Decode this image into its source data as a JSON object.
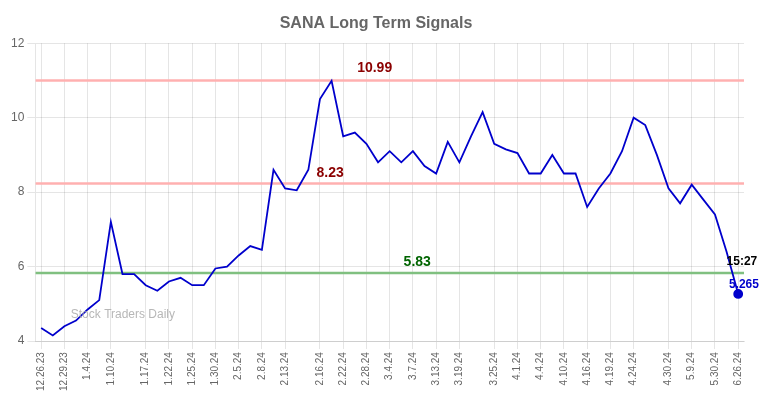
{
  "chart_data": {
    "type": "line",
    "title": "SANA Long Term Signals",
    "categories": [
      "12.26.23",
      null,
      "12.29.23",
      null,
      "1.4.24",
      null,
      "1.10.24",
      null,
      null,
      "1.17.24",
      null,
      "1.22.24",
      null,
      "1.25.24",
      null,
      "1.30.24",
      null,
      "2.5.24",
      null,
      "2.8.24",
      null,
      "2.13.24",
      null,
      null,
      "2.16.24",
      null,
      "2.22.24",
      null,
      "2.28.24",
      null,
      "3.4.24",
      null,
      "3.7.24",
      null,
      "3.13.24",
      null,
      "3.19.24",
      null,
      null,
      "3.25.24",
      null,
      "4.1.24",
      null,
      "4.4.24",
      null,
      "4.10.24",
      null,
      "4.16.24",
      null,
      "4.19.24",
      null,
      "4.24.24",
      null,
      null,
      "4.30.24",
      null,
      "5.9.24",
      null,
      "5.30.24",
      null,
      "6.26.24"
    ],
    "values": [
      4.35,
      4.15,
      4.4,
      4.55,
      4.85,
      5.1,
      7.2,
      5.8,
      5.8,
      5.5,
      5.35,
      5.6,
      5.7,
      5.5,
      5.5,
      5.95,
      6.0,
      6.3,
      6.55,
      6.45,
      8.6,
      8.1,
      8.05,
      8.6,
      10.5,
      10.99,
      9.5,
      9.6,
      9.3,
      8.8,
      9.1,
      8.8,
      9.1,
      8.7,
      8.5,
      9.35,
      8.8,
      9.5,
      10.15,
      9.3,
      9.15,
      9.05,
      8.5,
      8.5,
      9.0,
      8.5,
      8.5,
      7.6,
      8.1,
      8.5,
      9.1,
      10.0,
      9.8,
      9.0,
      8.1,
      7.7,
      8.2,
      7.8,
      7.4,
      6.4,
      5.265
    ],
    "color": "#0000cc",
    "ylim": [
      4,
      12
    ],
    "yticks": [
      4,
      6,
      8,
      10,
      12
    ],
    "grid": true,
    "reference_lines": [
      {
        "y": 11.0,
        "color": "#ffb0b0"
      },
      {
        "y": 8.23,
        "color": "#ffb0b0"
      },
      {
        "y": 5.83,
        "color": "#80c080"
      }
    ],
    "annotations": [
      {
        "text": "10.99",
        "y": 10.99,
        "color": "darkred"
      },
      {
        "text": "8.23",
        "y": 8.23,
        "color": "darkred"
      },
      {
        "text": "5.83",
        "y": 5.83,
        "color": "darkgreen"
      },
      {
        "text": "15:27",
        "y": 5.265,
        "color": "black"
      },
      {
        "text": "5.265",
        "y": 5.265,
        "color": "#0000cc"
      },
      {
        "text": "Stock Traders Daily",
        "color": "#aaaaaa"
      }
    ]
  }
}
